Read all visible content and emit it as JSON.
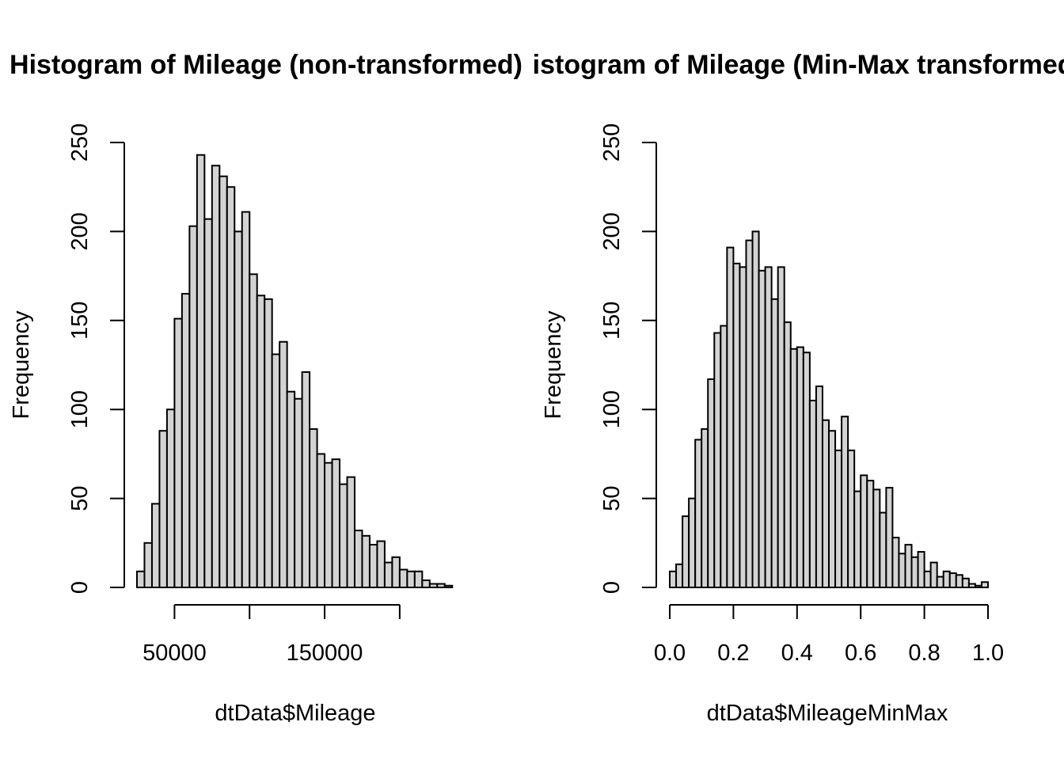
{
  "chart_data": [
    {
      "type": "bar",
      "title": "Histogram of Mileage (non-transformed)",
      "xlabel": "dtData$Mileage",
      "ylabel": "Frequency",
      "ylim": [
        0,
        250
      ],
      "xlim": [
        25000,
        237500
      ],
      "y_ticks": [
        "0",
        "50",
        "100",
        "150",
        "200",
        "250"
      ],
      "x_ticks": [
        50000,
        100000,
        150000,
        200000
      ],
      "x_tick_labels": [
        "50000",
        "",
        "150000",
        ""
      ],
      "bin_start": 25000,
      "bin_width": 5000,
      "values": [
        9,
        25,
        47,
        88,
        100,
        151,
        165,
        203,
        243,
        207,
        237,
        231,
        225,
        200,
        211,
        176,
        164,
        162,
        131,
        138,
        110,
        106,
        121,
        89,
        75,
        70,
        72,
        58,
        62,
        32,
        29,
        24,
        26,
        14,
        17,
        10,
        9,
        9,
        4,
        2,
        2,
        1
      ]
    },
    {
      "type": "bar",
      "title": "Histogram of Mileage (Min-Max transformed)",
      "xlabel": "dtData$MileageMinMax",
      "ylabel": "Frequency",
      "ylim": [
        0,
        250
      ],
      "xlim": [
        0,
        1
      ],
      "y_ticks": [
        "0",
        "50",
        "100",
        "150",
        "200",
        "250"
      ],
      "x_ticks": [
        0.0,
        0.2,
        0.4,
        0.6,
        0.8,
        1.0
      ],
      "x_tick_labels": [
        "0.0",
        "0.2",
        "0.4",
        "0.6",
        "0.8",
        "1.0"
      ],
      "bin_start": 0,
      "bin_width": 0.02,
      "values": [
        9,
        13,
        40,
        50,
        83,
        89,
        117,
        143,
        147,
        191,
        182,
        180,
        195,
        200,
        178,
        180,
        162,
        180,
        149,
        134,
        135,
        132,
        105,
        113,
        94,
        88,
        77,
        96,
        77,
        54,
        63,
        60,
        55,
        42,
        56,
        28,
        19,
        24,
        17,
        20,
        9,
        14,
        6,
        9,
        8,
        7,
        5,
        2,
        1,
        3
      ]
    }
  ]
}
